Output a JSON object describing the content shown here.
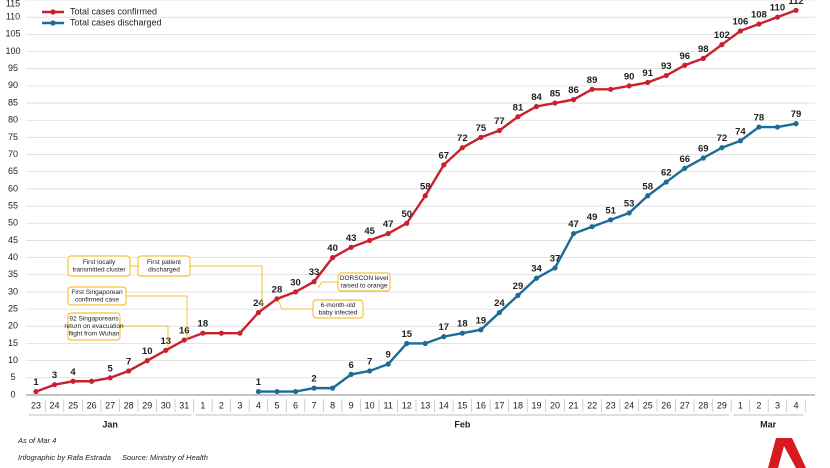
{
  "chart_data": {
    "type": "line",
    "categories": [
      "23",
      "24",
      "25",
      "26",
      "27",
      "28",
      "29",
      "30",
      "31",
      "1",
      "2",
      "3",
      "4",
      "5",
      "6",
      "7",
      "8",
      "9",
      "10",
      "11",
      "12",
      "13",
      "14",
      "15",
      "16",
      "17",
      "18",
      "19",
      "20",
      "21",
      "22",
      "23",
      "24",
      "25",
      "26",
      "27",
      "28",
      "29",
      "1",
      "2",
      "3",
      "4"
    ],
    "months": [
      {
        "name": "Jan",
        "days": 9
      },
      {
        "name": "Feb",
        "days": 29
      },
      {
        "name": "Mar",
        "days": 4
      }
    ],
    "series": [
      {
        "name": "Total cases confirmed",
        "color": "#c8202f",
        "values": [
          1,
          3,
          4,
          4,
          5,
          7,
          10,
          13,
          16,
          18,
          18,
          18,
          24,
          28,
          30,
          33,
          40,
          43,
          45,
          47,
          50,
          58,
          67,
          72,
          75,
          77,
          81,
          84,
          85,
          86,
          89,
          89,
          90,
          91,
          93,
          96,
          98,
          102,
          106,
          108,
          110,
          112
        ],
        "value_labels": [
          1,
          3,
          4,
          null,
          5,
          7,
          10,
          13,
          16,
          18,
          null,
          null,
          24,
          28,
          30,
          33,
          40,
          43,
          45,
          47,
          50,
          58,
          67,
          72,
          75,
          77,
          81,
          84,
          85,
          86,
          89,
          null,
          90,
          91,
          93,
          96,
          98,
          102,
          106,
          108,
          110,
          112
        ]
      },
      {
        "name": "Total cases discharged",
        "color": "#1d6b96",
        "values": [
          null,
          null,
          null,
          null,
          null,
          null,
          null,
          null,
          null,
          null,
          null,
          null,
          1,
          1,
          1,
          2,
          2,
          6,
          7,
          9,
          15,
          15,
          17,
          18,
          19,
          24,
          29,
          34,
          37,
          47,
          49,
          51,
          53,
          58,
          62,
          66,
          69,
          72,
          74,
          78,
          78,
          79
        ],
        "value_labels": [
          null,
          null,
          null,
          null,
          null,
          null,
          null,
          null,
          null,
          null,
          null,
          null,
          1,
          null,
          null,
          2,
          null,
          6,
          7,
          9,
          15,
          null,
          17,
          18,
          19,
          24,
          29,
          34,
          37,
          47,
          49,
          51,
          53,
          58,
          62,
          66,
          69,
          72,
          74,
          78,
          null,
          79
        ]
      }
    ],
    "ylim": [
      0,
      115
    ],
    "yticks": [
      0,
      5,
      10,
      15,
      20,
      25,
      30,
      35,
      40,
      45,
      50,
      55,
      60,
      65,
      70,
      75,
      80,
      85,
      90,
      95,
      100,
      105,
      110,
      115
    ],
    "grid": true,
    "annotations": [
      {
        "lines": [
          "First locally",
          "transmitted cluster"
        ]
      },
      {
        "lines": [
          "First patient",
          "discharged"
        ]
      },
      {
        "lines": [
          "First Singaporean",
          "confirmed case"
        ]
      },
      {
        "lines": [
          "92 Singaporeans",
          "return on evacuation",
          "flight from Wuhan"
        ]
      },
      {
        "lines": [
          "DORSCON level",
          "raised to orange"
        ]
      },
      {
        "lines": [
          "6-month-old",
          "baby infected"
        ]
      }
    ],
    "notes": [
      "As of Mar 4",
      "Infographic by Rafa Estrada",
      "Source: Ministry of Health"
    ]
  }
}
